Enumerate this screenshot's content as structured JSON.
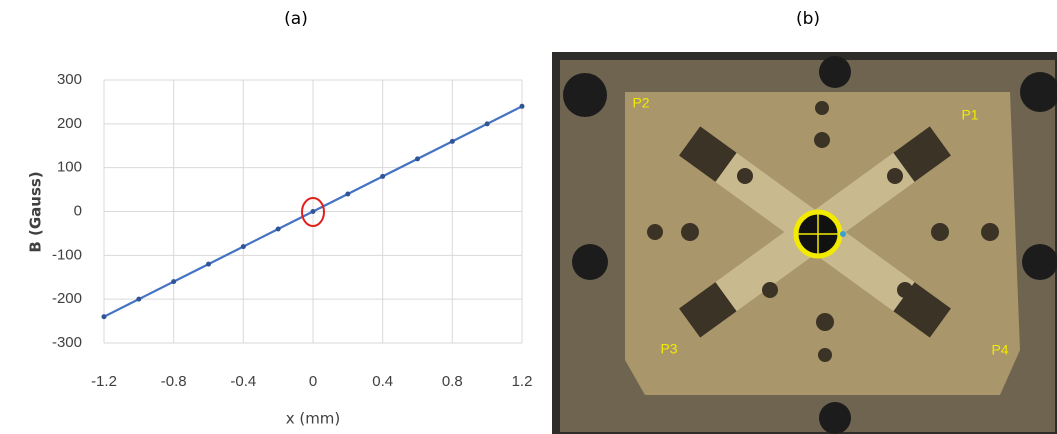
{
  "panels": [
    "(a)",
    "(b)"
  ],
  "chart_data": {
    "type": "line",
    "xlabel": "x (mm)",
    "ylabel": "B (Gauss)",
    "x": [
      -1.2,
      -1.0,
      -0.8,
      -0.6,
      -0.4,
      -0.2,
      0,
      0.2,
      0.4,
      0.6,
      0.8,
      1.0,
      1.2
    ],
    "values": [
      -240,
      -200,
      -160,
      -120,
      -80,
      -40,
      0,
      40,
      80,
      120,
      160,
      200,
      240
    ],
    "color": "#4472c4",
    "xlim": [
      -1.2,
      1.2
    ],
    "xticks": [
      -1.2,
      -0.8,
      -0.4,
      0,
      0.4,
      0.8,
      1.2
    ],
    "ylim": [
      -300,
      300
    ],
    "yticks": [
      -300,
      -200,
      -100,
      0,
      100,
      200,
      300
    ],
    "grid": true
  },
  "photo": {
    "labels": [
      "P1",
      "P2",
      "P3",
      "P4"
    ]
  }
}
